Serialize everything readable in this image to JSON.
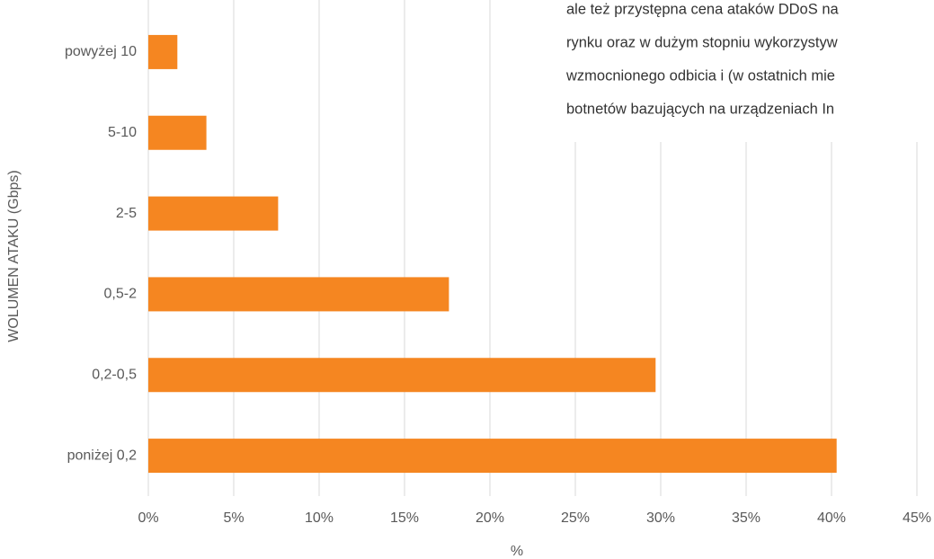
{
  "chart_data": {
    "type": "bar",
    "orientation": "horizontal",
    "categories": [
      "powyżej 10",
      "5-10",
      "2-5",
      "0,5-2",
      "0,2-0,5",
      "poniżej 0,2"
    ],
    "values": [
      1.7,
      3.4,
      7.6,
      17.6,
      29.7,
      40.3
    ],
    "color": "#f58621",
    "xlabel": "%",
    "ylabel": "WOLUMEN ATAKU (Gbps)",
    "xlim": [
      0,
      45
    ],
    "xticks": [
      {
        "value": 0,
        "label": "0%"
      },
      {
        "value": 5,
        "label": "5%"
      },
      {
        "value": 10,
        "label": "10%"
      },
      {
        "value": 15,
        "label": "15%"
      },
      {
        "value": 20,
        "label": "20%"
      },
      {
        "value": 25,
        "label": "25%"
      },
      {
        "value": 30,
        "label": "30%"
      },
      {
        "value": 35,
        "label": "35%"
      },
      {
        "value": 40,
        "label": "40%"
      },
      {
        "value": 45,
        "label": "45%"
      }
    ],
    "grid": true
  },
  "overlay_text": [
    "ale też przystępna cena ataków DDoS na",
    "rynku oraz w dużym stopniu wykorzystyw",
    "wzmocnionego odbicia i (w ostatnich mie",
    "botnetów bazujących na urządzeniach In"
  ]
}
